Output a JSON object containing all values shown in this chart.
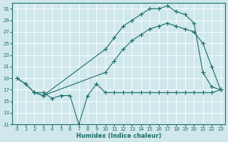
{
  "xlabel": "Humidex (Indice chaleur)",
  "bg_color": "#d0e8eb",
  "line_color": "#1a6b6b",
  "xlim": [
    -0.5,
    23.5
  ],
  "ylim": [
    11,
    32
  ],
  "yticks": [
    11,
    13,
    15,
    17,
    19,
    21,
    23,
    25,
    27,
    29,
    31
  ],
  "xticks": [
    0,
    1,
    2,
    3,
    4,
    5,
    6,
    7,
    8,
    9,
    10,
    11,
    12,
    13,
    14,
    15,
    16,
    17,
    18,
    19,
    20,
    21,
    22,
    23
  ],
  "line_flat_x": [
    0,
    1,
    2,
    3,
    4,
    5,
    6,
    7,
    8,
    9,
    10,
    11,
    12,
    13,
    14,
    15,
    16,
    17,
    18,
    19,
    20,
    21,
    22,
    23
  ],
  "line_flat_y": [
    19,
    18,
    16.5,
    16.5,
    15.5,
    16,
    16,
    11,
    16,
    18,
    16.5,
    16.5,
    16.5,
    16.5,
    16.5,
    16.5,
    16.5,
    16.5,
    16.5,
    16.5,
    16.5,
    16.5,
    16.5,
    17
  ],
  "line_upper_x": [
    0,
    1,
    2,
    3,
    10,
    11,
    12,
    13,
    14,
    15,
    16,
    17,
    18,
    19,
    20,
    21,
    22,
    23
  ],
  "line_upper_y": [
    19,
    18,
    16.5,
    16,
    24,
    26,
    28,
    29,
    30,
    31,
    31,
    31.5,
    30.5,
    30,
    28.5,
    20,
    17.5,
    17
  ],
  "line_mid_x": [
    2,
    3,
    10,
    11,
    12,
    13,
    14,
    15,
    16,
    17,
    18,
    19,
    20,
    21,
    22,
    23
  ],
  "line_mid_y": [
    16.5,
    16,
    20,
    22,
    24,
    25.5,
    26.5,
    27.5,
    28,
    28.5,
    28,
    27.5,
    27,
    25,
    21,
    17
  ]
}
